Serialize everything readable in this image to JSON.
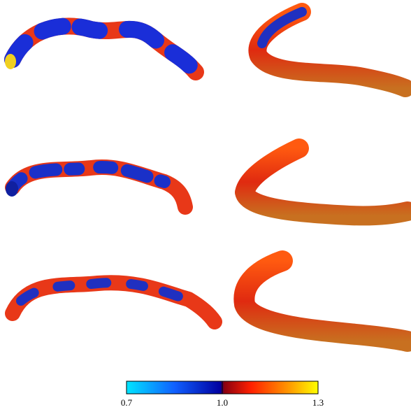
{
  "colorbar": {
    "range": [
      0.7,
      1.3
    ],
    "ticks": [
      0.7,
      {
        "value": 1,
        "label": "1.0"
      },
      1.3
    ]
  }
}
